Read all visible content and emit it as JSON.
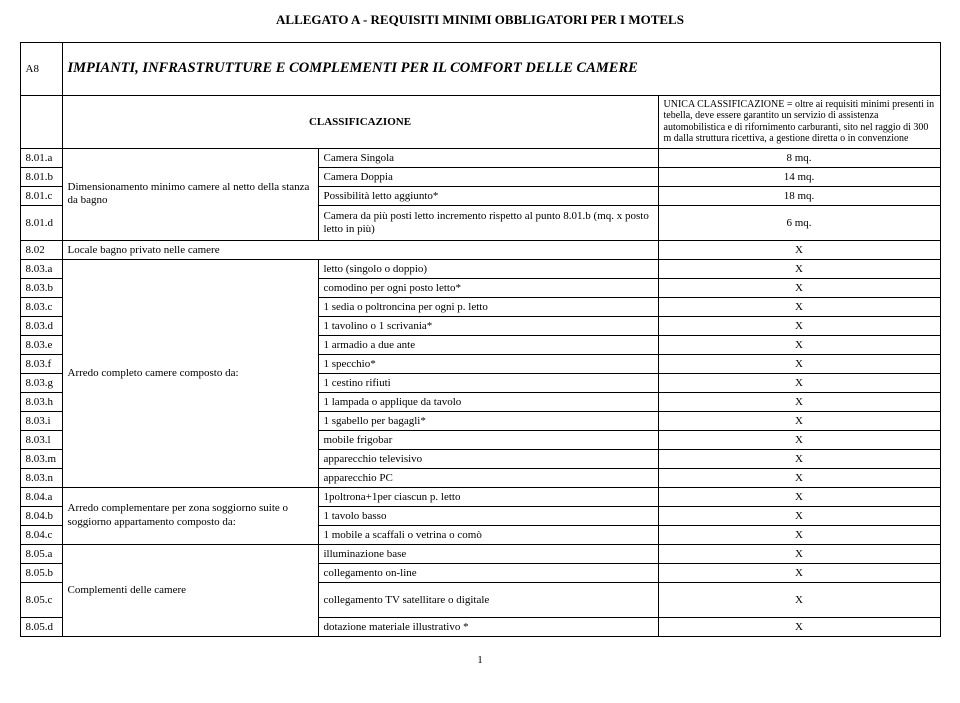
{
  "header": "ALLEGATO A - REQUISITI MINIMI OBBLIGATORI PER I MOTELS",
  "section_code": "A8",
  "section_title": "IMPIANTI, INFRASTRUTTURE E COMPLEMENTI PER IL COMFORT DELLE CAMERE",
  "classificazione_label": "CLASSIFICAZIONE",
  "classificazione_desc": "UNICA CLASSIFICAZIONE = oltre ai requisiti minimi presenti in tebella, deve essere garantito un servizio di assistenza automobilistica e di rifornimento carburanti, sito nel raggio di 300 m dalla struttura ricettiva, a gestione diretta o in convenzione",
  "group_dimensionamento": "Dimensionamento minimo camere al netto della stanza da bagno",
  "group_locale": "Locale bagno privato nelle camere",
  "group_arredo_completo": "Arredo completo camere composto da:",
  "group_arredo_complementare": "Arredo complementare per zona soggiorno suite o soggiorno appartamento composto da:",
  "group_complementi": "Complementi delle camere",
  "rows": {
    "r01a": {
      "code": "8.01.a",
      "desc": "Camera Singola",
      "val": "8 mq."
    },
    "r01b": {
      "code": "8.01.b",
      "desc": "Camera Doppia",
      "val": "14 mq."
    },
    "r01c": {
      "code": "8.01.c",
      "desc": "Possibilità letto aggiunto*",
      "val": "18 mq."
    },
    "r01d": {
      "code": "8.01.d",
      "desc": "Camera da più posti letto incremento rispetto al punto 8.01.b (mq. x posto letto in più)",
      "val": "6 mq."
    },
    "r02": {
      "code": "8.02",
      "val": "X"
    },
    "r03a": {
      "code": "8.03.a",
      "desc": "letto (singolo o doppio)",
      "val": "X"
    },
    "r03b": {
      "code": "8.03.b",
      "desc": "comodino per ogni posto letto*",
      "val": "X"
    },
    "r03c": {
      "code": "8.03.c",
      "desc": "1 sedia o poltroncina per ogni p. letto",
      "val": "X"
    },
    "r03d": {
      "code": "8.03.d",
      "desc": "1 tavolino o 1 scrivania*",
      "val": "X"
    },
    "r03e": {
      "code": "8.03.e",
      "desc": "1 armadio a due ante",
      "val": "X"
    },
    "r03f": {
      "code": "8.03.f",
      "desc": "1 specchio*",
      "val": "X"
    },
    "r03g": {
      "code": "8.03.g",
      "desc": "1 cestino rifiuti",
      "val": "X"
    },
    "r03h": {
      "code": "8.03.h",
      "desc": "1 lampada o applique da tavolo",
      "val": "X"
    },
    "r03i": {
      "code": "8.03.i",
      "desc": "1 sgabello per bagagli*",
      "val": "X"
    },
    "r03l": {
      "code": "8.03.l",
      "desc": "mobile frigobar",
      "val": "X"
    },
    "r03m": {
      "code": "8.03.m",
      "desc": "apparecchio televisivo",
      "val": "X"
    },
    "r03n": {
      "code": "8.03.n",
      "desc": "apparecchio  PC",
      "val": "X"
    },
    "r04a": {
      "code": "8.04.a",
      "desc": "1poltrona+1per ciascun p. letto",
      "val": "X"
    },
    "r04b": {
      "code": "8.04.b",
      "desc": "1 tavolo basso",
      "val": "X"
    },
    "r04c": {
      "code": "8.04.c",
      "desc": "1 mobile a scaffali o vetrina o comò",
      "val": "X"
    },
    "r05a": {
      "code": "8.05.a",
      "desc": "illuminazione base",
      "val": "X"
    },
    "r05b": {
      "code": "8.05.b",
      "desc": "collegamento on-line",
      "val": "X"
    },
    "r05c": {
      "code": "8.05.c",
      "desc": "collegamento TV satellitare o digitale",
      "val": "X"
    },
    "r05d": {
      "code": "8.05.d",
      "desc": "dotazione materiale illustrativo *",
      "val": "X"
    }
  },
  "page_number": "1"
}
